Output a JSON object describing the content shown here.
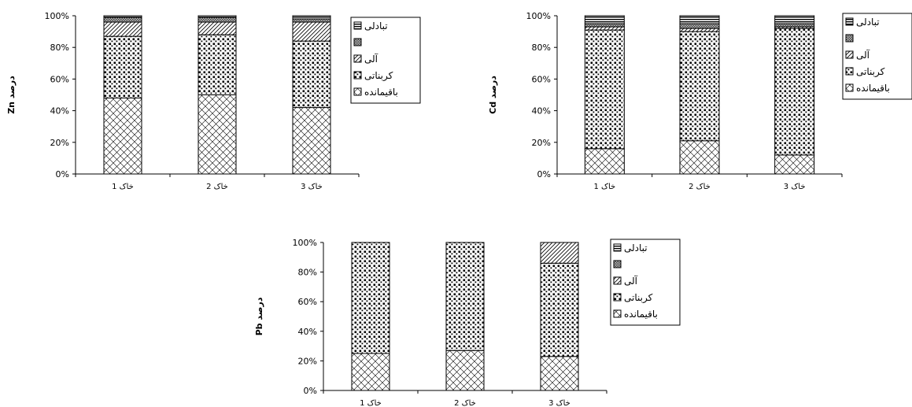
{
  "chart_data": [
    {
      "type": "bar",
      "stacked": "percent",
      "ylabel": "Zn درصد",
      "ylim": [
        0,
        100
      ],
      "yticks": [
        "0%",
        "20%",
        "40%",
        "60%",
        "80%",
        "100%"
      ],
      "categories": [
        "خاک 1",
        "خاک 2",
        "خاک 3"
      ],
      "series": [
        {
          "name": "باقیمانده",
          "pattern": "crosshatch",
          "values": [
            48,
            50,
            42
          ]
        },
        {
          "name": "کربناتی",
          "pattern": "dots",
          "values": [
            39,
            38,
            42
          ]
        },
        {
          "name": "آلی",
          "pattern": "diagonal",
          "values": [
            9,
            8,
            12
          ]
        },
        {
          "name": "",
          "pattern": "fine-grid",
          "values": [
            3,
            3,
            2
          ]
        },
        {
          "name": "تبادلی",
          "pattern": "horizontal",
          "values": [
            1,
            1,
            2
          ]
        }
      ],
      "legend": "right"
    },
    {
      "type": "bar",
      "stacked": "percent",
      "ylabel": "Cd درصد",
      "ylim": [
        0,
        100
      ],
      "yticks": [
        "0%",
        "20%",
        "40%",
        "60%",
        "80%",
        "100%"
      ],
      "categories": [
        "خاک 1",
        "خاک 2",
        "خاک 3"
      ],
      "series": [
        {
          "name": "باقیمانده",
          "pattern": "crosshatch",
          "values": [
            16,
            21,
            12
          ]
        },
        {
          "name": "کربناتی",
          "pattern": "dots",
          "values": [
            75,
            69,
            80
          ]
        },
        {
          "name": "آلی",
          "pattern": "diagonal",
          "values": [
            2,
            2,
            1
          ]
        },
        {
          "name": "",
          "pattern": "fine-grid",
          "values": [
            2,
            3,
            2
          ]
        },
        {
          "name": "تبادلی",
          "pattern": "horizontal",
          "values": [
            5,
            5,
            5
          ]
        }
      ],
      "legend": "right"
    },
    {
      "type": "bar",
      "stacked": "percent",
      "ylabel": "Pb درصد",
      "ylim": [
        0,
        100
      ],
      "yticks": [
        "0%",
        "20%",
        "40%",
        "60%",
        "80%",
        "100%"
      ],
      "categories": [
        "خاک 1",
        "خاک 2",
        "خاک 3"
      ],
      "series": [
        {
          "name": "باقیمانده",
          "pattern": "crosshatch",
          "values": [
            25,
            27,
            23
          ]
        },
        {
          "name": "کربناتی",
          "pattern": "dots",
          "values": [
            75,
            73,
            63
          ]
        },
        {
          "name": "آلی",
          "pattern": "diagonal",
          "values": [
            0,
            0,
            14
          ]
        },
        {
          "name": "",
          "pattern": "fine-grid",
          "values": [
            0,
            0,
            0
          ]
        },
        {
          "name": "تبادلی",
          "pattern": "horizontal",
          "values": [
            0,
            0,
            0
          ]
        }
      ],
      "legend": "right"
    }
  ]
}
